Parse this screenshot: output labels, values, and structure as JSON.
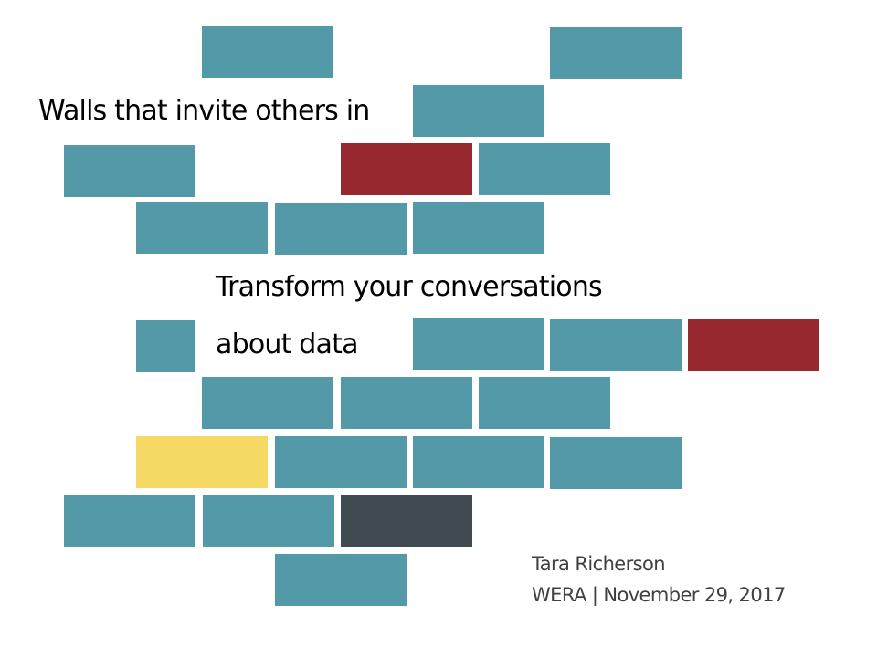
{
  "slide": {
    "title": "Walls that invite others in",
    "subtitle_line1": "Transform your conversations",
    "subtitle_line2": "about data",
    "author": "Tara Richerson",
    "event": "WERA | November 29, 2017"
  },
  "colors": {
    "teal": "#5399A8",
    "red": "#97282F",
    "yellow": "#F6D965",
    "dark": "#404B4F"
  }
}
